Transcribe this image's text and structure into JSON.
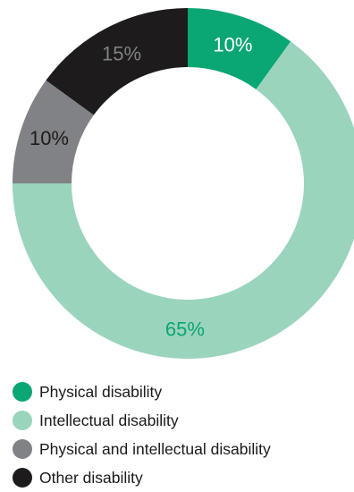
{
  "chart_data": {
    "type": "pie",
    "donut": true,
    "categories": [
      "Physical disability",
      "Intellectual disability",
      "Physical and intellectual disability",
      "Other disability"
    ],
    "values": [
      10,
      65,
      10,
      15
    ],
    "value_labels": [
      "10%",
      "65%",
      "10%",
      "15%"
    ],
    "colors": [
      "#0aa673",
      "#9bd4bd",
      "#818285",
      "#1d1b1c"
    ],
    "label_colors": [
      "#ffffff",
      "#0aa673",
      "#1d1b1c",
      "#818285"
    ],
    "start": "top, clockwise",
    "title": "",
    "legend_position": "bottom"
  }
}
